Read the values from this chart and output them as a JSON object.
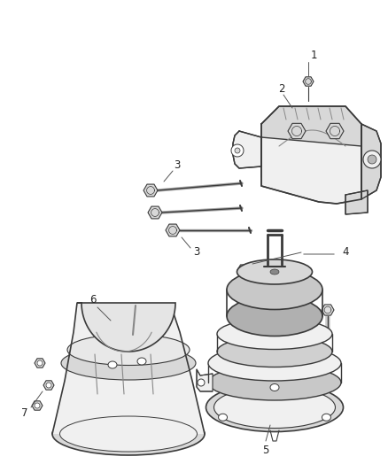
{
  "bg_color": "#ffffff",
  "line_color": "#3a3a3a",
  "line_color_light": "#888888",
  "fill_light": "#f0f0f0",
  "fill_mid": "#d8d8d8",
  "fill_dark": "#b8b8b8",
  "fig_width": 4.38,
  "fig_height": 5.33,
  "dpi": 100,
  "label_fontsize": 8.5,
  "label_color": "#222222"
}
